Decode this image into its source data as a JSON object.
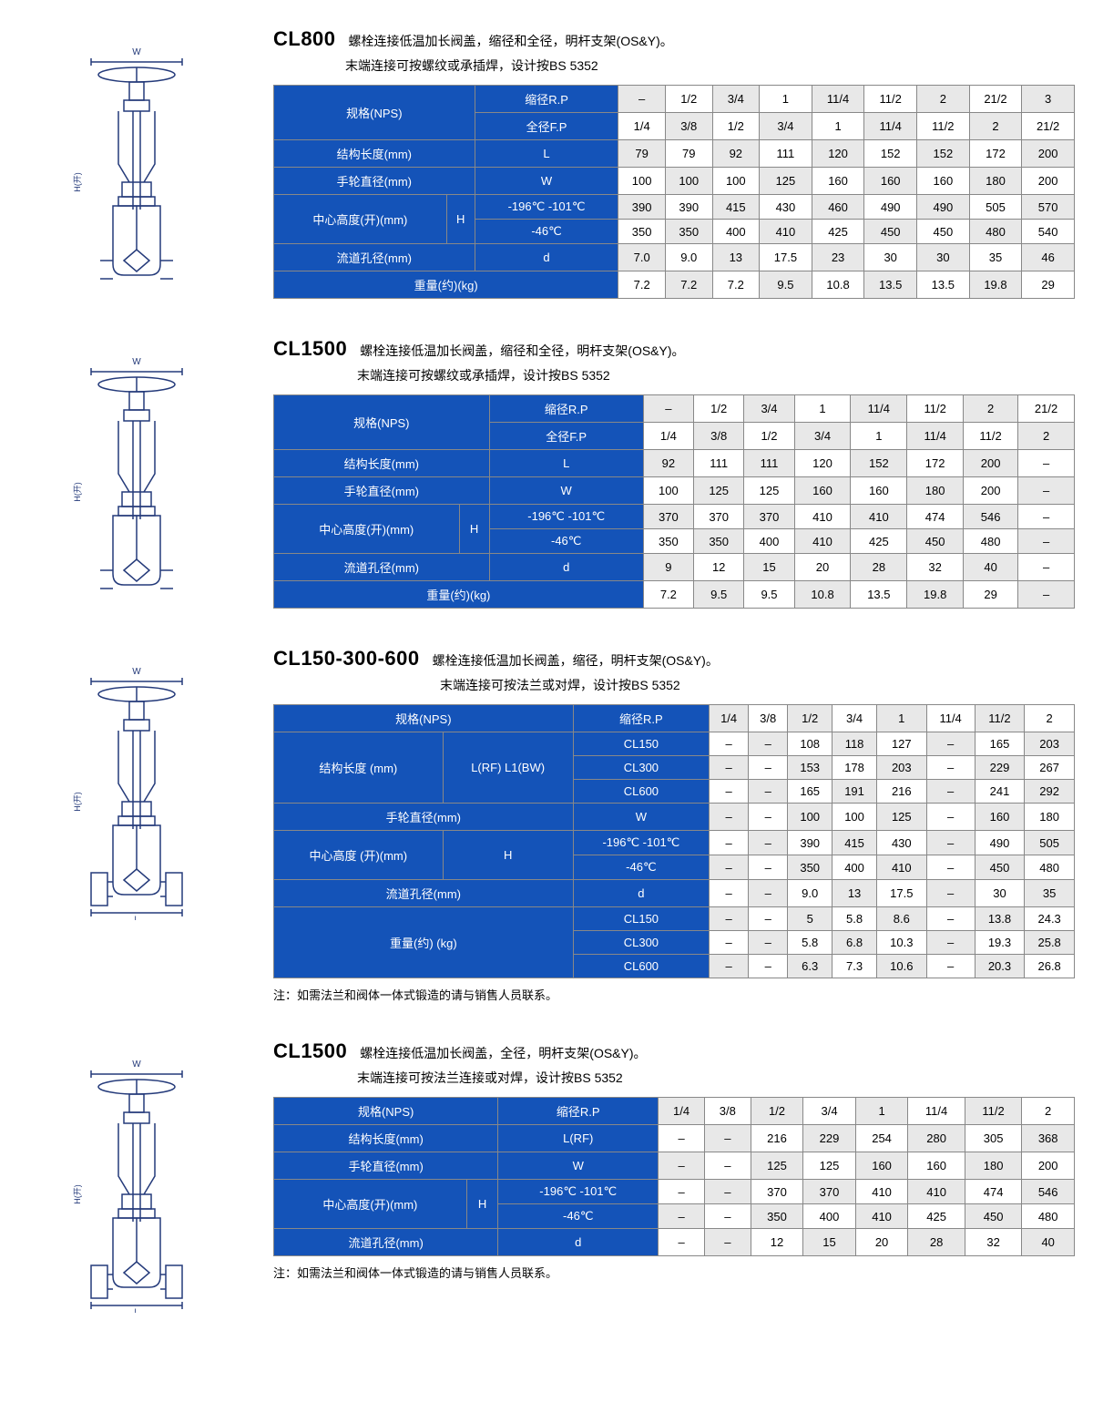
{
  "colors": {
    "blue": "#1453b8",
    "gray": "#e8e8e8",
    "white": "#ffffff",
    "border": "#888888",
    "text": "#000000"
  },
  "typography": {
    "code_fontsize": 22,
    "code_weight": 700,
    "desc_fontsize": 14,
    "table_fontsize": 13
  },
  "sections": [
    {
      "code": "CL800",
      "desc1": "螺栓连接低温加长阀盖，缩径和全径，明杆支架(OS&Y)。",
      "desc2": "末端连接可按螺纹或承插焊，设计按BS 5352",
      "diagram_type": "valve-thread",
      "table": {
        "header_cols": [
          "–",
          "1/2",
          "3/4",
          "1",
          "11/4",
          "11/2",
          "2",
          "21/2",
          "3"
        ],
        "fp_cols": [
          "1/4",
          "3/8",
          "1/2",
          "3/4",
          "1",
          "11/4",
          "11/2",
          "2",
          "21/2"
        ],
        "row_labels": {
          "nps": "规格(NPS)",
          "rp": "缩径R.P",
          "fp": "全径F.P",
          "len": "结构长度(mm)",
          "len_sym": "L",
          "wheel": "手轮直径(mm)",
          "wheel_sym": "W",
          "height": "中心高度(开)(mm)",
          "height_sym": "H",
          "h1_temp": "-196℃\n-101℃",
          "h2_temp": "-46℃",
          "bore": "流道孔径(mm)",
          "bore_sym": "d",
          "weight": "重量(约)(kg)"
        },
        "rows": {
          "L": [
            "79",
            "79",
            "92",
            "111",
            "120",
            "152",
            "152",
            "172",
            "200"
          ],
          "W": [
            "100",
            "100",
            "100",
            "125",
            "160",
            "160",
            "160",
            "180",
            "200"
          ],
          "H1": [
            "390",
            "390",
            "415",
            "430",
            "460",
            "490",
            "490",
            "505",
            "570"
          ],
          "H2": [
            "350",
            "350",
            "400",
            "410",
            "425",
            "450",
            "450",
            "480",
            "540"
          ],
          "d": [
            "7.0",
            "9.0",
            "13",
            "17.5",
            "23",
            "30",
            "30",
            "35",
            "46"
          ],
          "kg": [
            "7.2",
            "7.2",
            "7.2",
            "9.5",
            "10.8",
            "13.5",
            "13.5",
            "19.8",
            "29"
          ]
        }
      }
    },
    {
      "code": "CL1500",
      "desc1": "螺栓连接低温加长阀盖，缩径和全径，明杆支架(OS&Y)。",
      "desc2": "末端连接可按螺纹或承插焊，设计按BS 5352",
      "diagram_type": "valve-thread",
      "table": {
        "header_cols": [
          "–",
          "1/2",
          "3/4",
          "1",
          "11/4",
          "11/2",
          "2",
          "21/2"
        ],
        "fp_cols": [
          "1/4",
          "3/8",
          "1/2",
          "3/4",
          "1",
          "11/4",
          "11/2",
          "2"
        ],
        "row_labels": {
          "nps": "规格(NPS)",
          "rp": "缩径R.P",
          "fp": "全径F.P",
          "len": "结构长度(mm)",
          "len_sym": "L",
          "wheel": "手轮直径(mm)",
          "wheel_sym": "W",
          "height": "中心高度(开)(mm)",
          "height_sym": "H",
          "h1_temp": "-196℃\n-101℃",
          "h2_temp": "-46℃",
          "bore": "流道孔径(mm)",
          "bore_sym": "d",
          "weight": "重量(约)(kg)"
        },
        "rows": {
          "L": [
            "92",
            "111",
            "111",
            "120",
            "152",
            "172",
            "200",
            "–"
          ],
          "W": [
            "100",
            "125",
            "125",
            "160",
            "160",
            "180",
            "200",
            "–"
          ],
          "H1": [
            "370",
            "370",
            "370",
            "410",
            "410",
            "474",
            "546",
            "–"
          ],
          "H2": [
            "350",
            "350",
            "400",
            "410",
            "425",
            "450",
            "480",
            "–"
          ],
          "d": [
            "9",
            "12",
            "15",
            "20",
            "28",
            "32",
            "40",
            "–"
          ],
          "kg": [
            "7.2",
            "9.5",
            "9.5",
            "10.8",
            "13.5",
            "19.8",
            "29",
            "–"
          ]
        }
      }
    },
    {
      "code": "CL150-300-600",
      "desc1": "螺栓连接低温加长阀盖，缩径，明杆支架(OS&Y)。",
      "desc2": "末端连接可按法兰或对焊，设计按BS 5352",
      "diagram_type": "valve-flange",
      "footnote": "注：如需法兰和阀体一体式锻造的请与销售人员联系。",
      "table3": {
        "header_cols": [
          "1/4",
          "3/8",
          "1/2",
          "3/4",
          "1",
          "11/4",
          "11/2",
          "2"
        ],
        "row_labels": {
          "nps": "规格(NPS)",
          "rp": "缩径R.P",
          "len": "结构长度\n(mm)",
          "len_sub": "L(RF)\nL1(BW)",
          "cl150": "CL150",
          "cl300": "CL300",
          "cl600": "CL600",
          "wheel": "手轮直径(mm)",
          "wheel_sym": "W",
          "height": "中心高度\n(开)(mm)",
          "height_sym": "H",
          "h1_temp": "-196℃\n-101℃",
          "h2_temp": "-46℃",
          "bore": "流道孔径(mm)",
          "bore_sym": "d",
          "weight": "重量(约)\n(kg)"
        },
        "rows": {
          "L150": [
            "–",
            "–",
            "108",
            "118",
            "127",
            "–",
            "165",
            "203"
          ],
          "L300": [
            "–",
            "–",
            "153",
            "178",
            "203",
            "–",
            "229",
            "267"
          ],
          "L600": [
            "–",
            "–",
            "165",
            "191",
            "216",
            "–",
            "241",
            "292"
          ],
          "W": [
            "–",
            "–",
            "100",
            "100",
            "125",
            "–",
            "160",
            "180"
          ],
          "H1": [
            "–",
            "–",
            "390",
            "415",
            "430",
            "–",
            "490",
            "505"
          ],
          "H2": [
            "–",
            "–",
            "350",
            "400",
            "410",
            "–",
            "450",
            "480"
          ],
          "d": [
            "–",
            "–",
            "9.0",
            "13",
            "17.5",
            "–",
            "30",
            "35"
          ],
          "kg150": [
            "–",
            "–",
            "5",
            "5.8",
            "8.6",
            "–",
            "13.8",
            "24.3"
          ],
          "kg300": [
            "–",
            "–",
            "5.8",
            "6.8",
            "10.3",
            "–",
            "19.3",
            "25.8"
          ],
          "kg600": [
            "–",
            "–",
            "6.3",
            "7.3",
            "10.6",
            "–",
            "20.3",
            "26.8"
          ]
        }
      }
    },
    {
      "code": "CL1500",
      "desc1": "螺栓连接低温加长阀盖，全径，明杆支架(OS&Y)。",
      "desc2": "末端连接可按法兰连接或对焊，设计按BS 5352",
      "diagram_type": "valve-flange",
      "footnote": "注：如需法兰和阀体一体式锻造的请与销售人员联系。",
      "table4": {
        "header_cols": [
          "1/4",
          "3/8",
          "1/2",
          "3/4",
          "1",
          "11/4",
          "11/2",
          "2"
        ],
        "row_labels": {
          "nps": "规格(NPS)",
          "rp": "缩径R.P",
          "len": "结构长度(mm)",
          "len_sym": "L(RF)",
          "wheel": "手轮直径(mm)",
          "wheel_sym": "W",
          "height": "中心高度(开)(mm)",
          "height_sym": "H",
          "h1_temp": "-196℃\n-101℃",
          "h2_temp": "-46℃",
          "bore": "流道孔径(mm)",
          "bore_sym": "d"
        },
        "rows": {
          "L": [
            "–",
            "–",
            "216",
            "229",
            "254",
            "280",
            "305",
            "368"
          ],
          "W": [
            "–",
            "–",
            "125",
            "125",
            "160",
            "160",
            "180",
            "200"
          ],
          "H1": [
            "–",
            "–",
            "370",
            "370",
            "410",
            "410",
            "474",
            "546"
          ],
          "H2": [
            "–",
            "–",
            "350",
            "400",
            "410",
            "425",
            "450",
            "480"
          ],
          "d": [
            "–",
            "–",
            "12",
            "15",
            "20",
            "28",
            "32",
            "40"
          ]
        }
      }
    }
  ]
}
